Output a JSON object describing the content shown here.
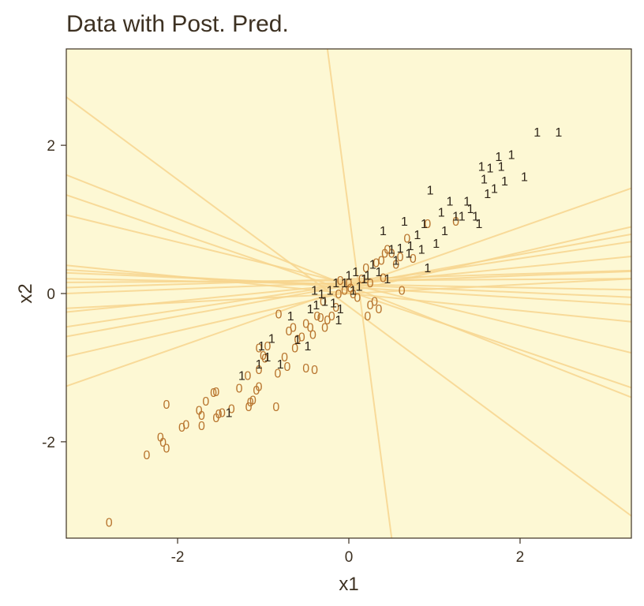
{
  "chart_data": {
    "type": "scatter",
    "title": "Data with Post. Pred.",
    "xlabel": "x1",
    "ylabel": "x2",
    "xlim": [
      -3.3,
      3.3
    ],
    "ylim": [
      -3.3,
      3.3
    ],
    "xticks": [
      -2,
      0,
      2
    ],
    "yticks": [
      -2,
      0,
      2
    ],
    "grid": false,
    "colors": {
      "panel_bg": "#fdf8d4",
      "lines": "#f7d58e",
      "label0": "#b8752f",
      "label1": "#2e2418",
      "frame": "#3d3122"
    },
    "posterior_lines": [
      [
        [
          -3.3,
          2.65
        ],
        [
          3.3,
          -3.0
        ]
      ],
      [
        [
          -3.3,
          1.6
        ],
        [
          3.3,
          -1.4
        ]
      ],
      [
        [
          -3.3,
          1.33
        ],
        [
          3.3,
          -1.27
        ]
      ],
      [
        [
          -3.3,
          1.06
        ],
        [
          3.3,
          -0.8
        ]
      ],
      [
        [
          -3.3,
          0.38
        ],
        [
          3.3,
          -0.38
        ]
      ],
      [
        [
          -3.3,
          0.32
        ],
        [
          3.3,
          -0.15
        ]
      ],
      [
        [
          -3.3,
          0.28
        ],
        [
          3.3,
          -0.05
        ]
      ],
      [
        [
          -3.3,
          0.2
        ],
        [
          3.3,
          0.05
        ]
      ],
      [
        [
          -3.3,
          0.15
        ],
        [
          3.3,
          0.2
        ]
      ],
      [
        [
          -3.3,
          0.08
        ],
        [
          3.3,
          0.31
        ]
      ],
      [
        [
          -3.3,
          0.0
        ],
        [
          3.3,
          0.3
        ]
      ],
      [
        [
          -3.3,
          -0.2
        ],
        [
          3.3,
          0.2
        ]
      ],
      [
        [
          -3.3,
          -0.25
        ],
        [
          3.3,
          0.5
        ]
      ],
      [
        [
          -3.3,
          -0.45
        ],
        [
          3.3,
          0.7
        ]
      ],
      [
        [
          -3.3,
          -0.58
        ],
        [
          3.3,
          0.8
        ]
      ],
      [
        [
          -3.3,
          -0.85
        ],
        [
          3.3,
          0.9
        ]
      ],
      [
        [
          -3.3,
          -1.25
        ],
        [
          3.3,
          1.42
        ]
      ],
      [
        [
          -0.25,
          3.3
        ],
        [
          0.5,
          -3.3
        ]
      ]
    ],
    "series": [
      {
        "name": "0",
        "points": [
          [
            -2.8,
            -3.08
          ],
          [
            -2.36,
            -2.17
          ],
          [
            -2.2,
            -1.93
          ],
          [
            -2.17,
            -2.0
          ],
          [
            -2.13,
            -2.08
          ],
          [
            -2.13,
            -1.49
          ],
          [
            -1.95,
            -1.8
          ],
          [
            -1.9,
            -1.76
          ],
          [
            -1.75,
            -1.57
          ],
          [
            -1.72,
            -1.64
          ],
          [
            -1.72,
            -1.78
          ],
          [
            -1.67,
            -1.45
          ],
          [
            -1.58,
            -1.33
          ],
          [
            -1.55,
            -1.32
          ],
          [
            -1.55,
            -1.67
          ],
          [
            -1.52,
            -1.62
          ],
          [
            -1.48,
            -1.6
          ],
          [
            -1.37,
            -1.55
          ],
          [
            -1.28,
            -1.27
          ],
          [
            -1.18,
            -1.1
          ],
          [
            -1.17,
            -1.52
          ],
          [
            -1.15,
            -1.46
          ],
          [
            -1.12,
            -1.43
          ],
          [
            -1.08,
            -1.3
          ],
          [
            -1.05,
            -1.25
          ],
          [
            -1.05,
            -1.02
          ],
          [
            -1.05,
            -0.73
          ],
          [
            -1.0,
            -0.83
          ],
          [
            -0.98,
            -0.87
          ],
          [
            -0.95,
            -0.7
          ],
          [
            -0.85,
            -1.52
          ],
          [
            -0.83,
            -1.07
          ],
          [
            -0.82,
            -0.27
          ],
          [
            -0.75,
            -0.85
          ],
          [
            -0.72,
            -0.98
          ],
          [
            -0.7,
            -0.5
          ],
          [
            -0.65,
            -0.45
          ],
          [
            -0.63,
            -0.73
          ],
          [
            -0.6,
            -0.61
          ],
          [
            -0.55,
            -0.58
          ],
          [
            -0.5,
            -0.4
          ],
          [
            -0.5,
            -1.0
          ],
          [
            -0.45,
            -0.45
          ],
          [
            -0.42,
            -0.55
          ],
          [
            -0.4,
            -1.02
          ],
          [
            -0.37,
            -0.3
          ],
          [
            -0.33,
            -0.32
          ],
          [
            -0.3,
            -0.1
          ],
          [
            -0.28,
            -0.45
          ],
          [
            -0.25,
            -0.35
          ],
          [
            -0.2,
            -0.3
          ],
          [
            -0.15,
            -0.18
          ],
          [
            -0.12,
            0.0
          ],
          [
            -0.1,
            0.18
          ],
          [
            -0.05,
            0.05
          ],
          [
            0.0,
            0.15
          ],
          [
            0.02,
            0.08
          ],
          [
            0.05,
            0.0
          ],
          [
            0.1,
            -0.05
          ],
          [
            0.15,
            0.2
          ],
          [
            0.2,
            0.35
          ],
          [
            0.22,
            -0.3
          ],
          [
            0.25,
            0.15
          ],
          [
            0.25,
            -0.15
          ],
          [
            0.3,
            -0.1
          ],
          [
            0.32,
            0.42
          ],
          [
            0.35,
            -0.2
          ],
          [
            0.38,
            0.45
          ],
          [
            0.4,
            0.22
          ],
          [
            0.42,
            0.55
          ],
          [
            0.45,
            0.6
          ],
          [
            0.5,
            0.55
          ],
          [
            0.55,
            0.4
          ],
          [
            0.6,
            0.5
          ],
          [
            0.62,
            0.05
          ],
          [
            0.68,
            0.75
          ],
          [
            0.75,
            0.48
          ],
          [
            0.92,
            0.95
          ],
          [
            1.25,
            0.98
          ]
        ]
      },
      {
        "name": "1",
        "points": [
          [
            -1.4,
            -1.6
          ],
          [
            -1.25,
            -1.1
          ],
          [
            -1.05,
            -0.95
          ],
          [
            -1.02,
            -0.7
          ],
          [
            -0.95,
            -0.85
          ],
          [
            -0.9,
            -0.6
          ],
          [
            -0.8,
            -0.95
          ],
          [
            -0.68,
            -0.3
          ],
          [
            -0.6,
            -0.62
          ],
          [
            -0.48,
            -0.7
          ],
          [
            -0.45,
            -0.2
          ],
          [
            -0.4,
            0.05
          ],
          [
            -0.38,
            -0.15
          ],
          [
            -0.32,
            0.0
          ],
          [
            -0.28,
            -0.1
          ],
          [
            -0.22,
            0.05
          ],
          [
            -0.18,
            -0.12
          ],
          [
            -0.15,
            0.15
          ],
          [
            -0.12,
            -0.35
          ],
          [
            -0.1,
            -0.2
          ],
          [
            -0.05,
            0.15
          ],
          [
            0.0,
            0.25
          ],
          [
            0.05,
            0.05
          ],
          [
            0.08,
            0.3
          ],
          [
            0.12,
            0.1
          ],
          [
            0.18,
            0.2
          ],
          [
            0.22,
            0.25
          ],
          [
            0.28,
            0.4
          ],
          [
            0.35,
            0.3
          ],
          [
            0.4,
            0.85
          ],
          [
            0.45,
            0.2
          ],
          [
            0.5,
            0.6
          ],
          [
            0.55,
            0.45
          ],
          [
            0.6,
            0.62
          ],
          [
            0.65,
            0.98
          ],
          [
            0.7,
            0.55
          ],
          [
            0.72,
            0.65
          ],
          [
            0.8,
            0.8
          ],
          [
            0.85,
            0.6
          ],
          [
            0.88,
            0.95
          ],
          [
            0.92,
            0.35
          ],
          [
            0.95,
            1.4
          ],
          [
            1.02,
            0.68
          ],
          [
            1.08,
            1.1
          ],
          [
            1.12,
            0.85
          ],
          [
            1.18,
            1.25
          ],
          [
            1.25,
            1.05
          ],
          [
            1.32,
            1.05
          ],
          [
            1.38,
            1.25
          ],
          [
            1.42,
            1.15
          ],
          [
            1.48,
            1.05
          ],
          [
            1.52,
            0.95
          ],
          [
            1.58,
            1.55
          ],
          [
            1.62,
            1.35
          ],
          [
            1.65,
            1.7
          ],
          [
            1.7,
            1.42
          ],
          [
            1.75,
            1.85
          ],
          [
            1.82,
            1.52
          ],
          [
            1.9,
            1.88
          ],
          [
            2.05,
            1.58
          ],
          [
            2.2,
            2.18
          ],
          [
            1.55,
            1.72
          ],
          [
            1.78,
            1.72
          ],
          [
            2.45,
            2.18
          ]
        ]
      }
    ]
  }
}
